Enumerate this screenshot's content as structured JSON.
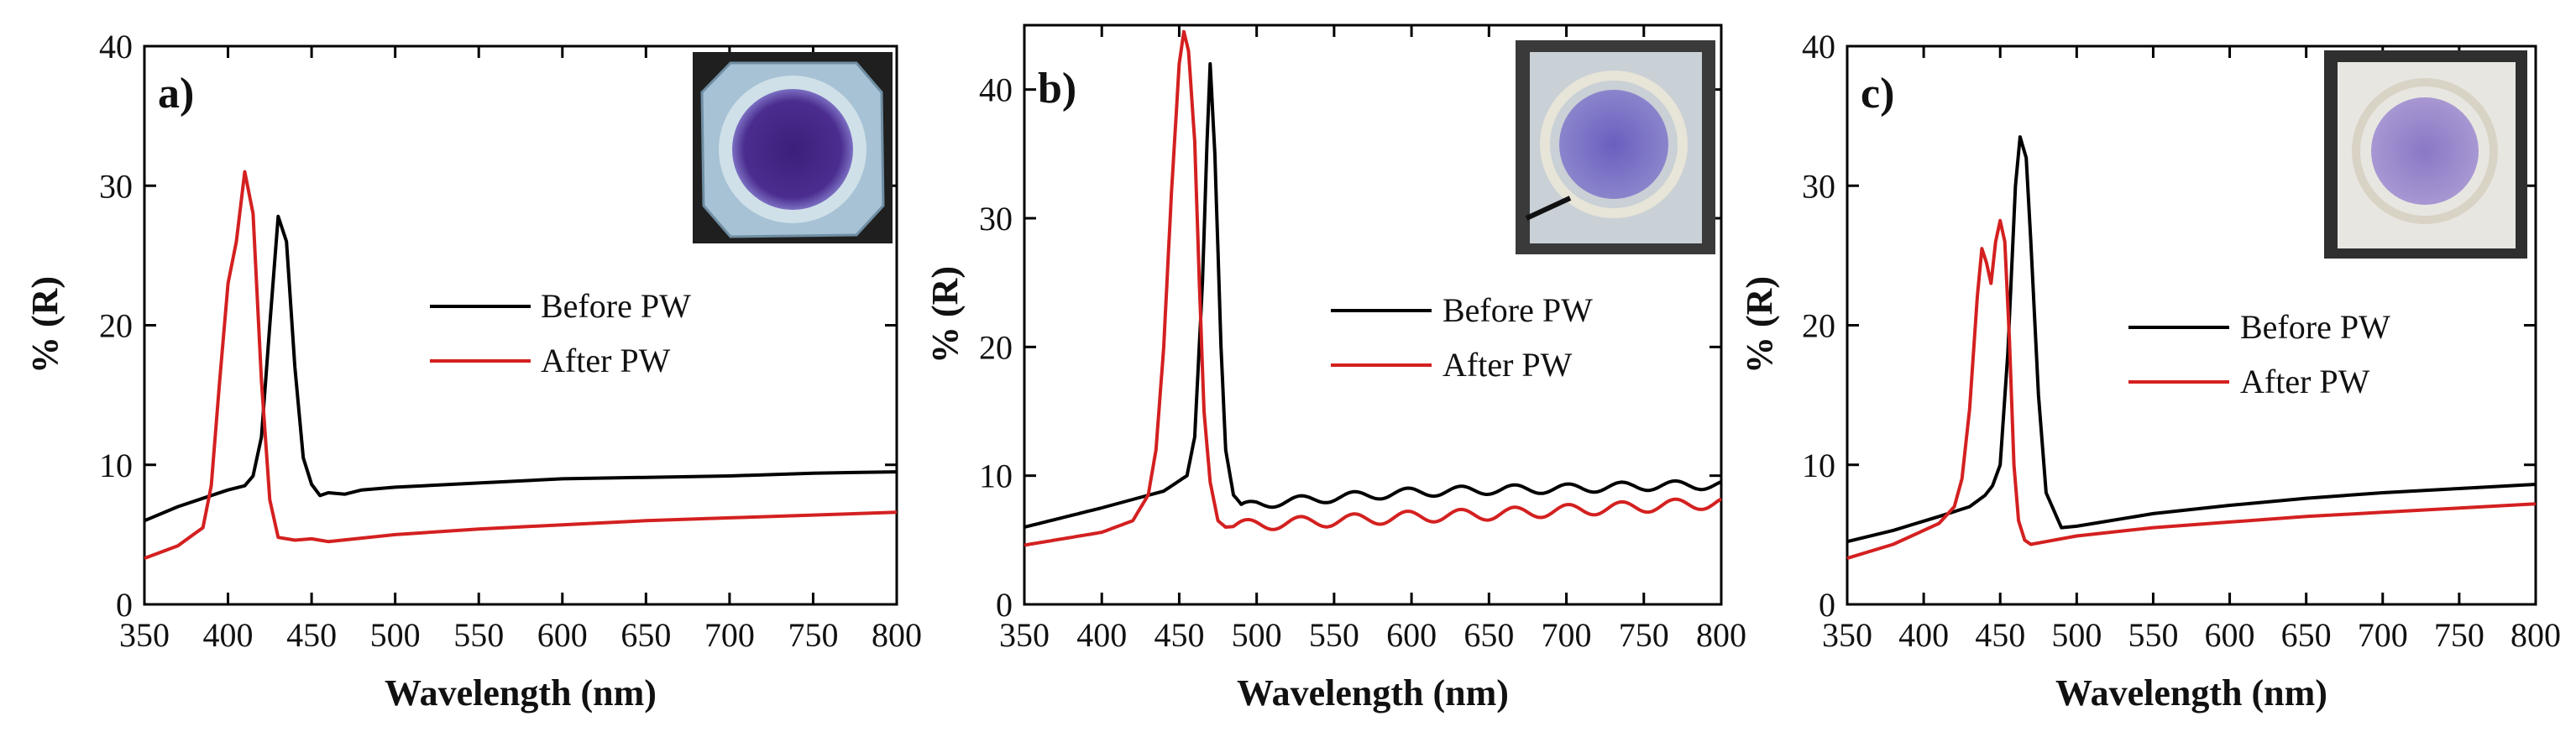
{
  "figure": {
    "description_visible": "three reflectance spectra panels"
  },
  "chart_data": [
    {
      "type": "line",
      "panel_label": "a)",
      "xlabel": "Wavelength (nm)",
      "ylabel": "% (R)",
      "xlim": [
        350,
        800
      ],
      "ylim": [
        0,
        40
      ],
      "xticks": [
        350,
        400,
        450,
        500,
        550,
        600,
        650,
        700,
        750,
        800
      ],
      "yticks": [
        0,
        10,
        20,
        30,
        40
      ],
      "legend": [
        "Before PW",
        "After PW"
      ],
      "series": [
        {
          "name": "Before PW",
          "color": "#000000",
          "x": [
            350,
            370,
            390,
            400,
            410,
            415,
            420,
            425,
            430,
            435,
            440,
            445,
            450,
            455,
            460,
            470,
            480,
            500,
            550,
            600,
            650,
            700,
            750,
            800
          ],
          "y": [
            6.0,
            7.0,
            7.8,
            8.2,
            8.5,
            9.2,
            12,
            20,
            27.8,
            26,
            17,
            10.5,
            8.6,
            7.8,
            8.0,
            7.9,
            8.2,
            8.4,
            8.7,
            9.0,
            9.1,
            9.2,
            9.4,
            9.5
          ]
        },
        {
          "name": "After PW",
          "color": "#d42020",
          "x": [
            350,
            370,
            385,
            390,
            395,
            400,
            405,
            410,
            415,
            420,
            425,
            430,
            440,
            450,
            460,
            500,
            550,
            600,
            650,
            700,
            750,
            800
          ],
          "y": [
            3.3,
            4.2,
            5.5,
            8.5,
            16,
            23,
            26,
            31,
            28,
            16,
            7.5,
            4.8,
            4.6,
            4.7,
            4.5,
            5.0,
            5.4,
            5.7,
            6.0,
            6.2,
            6.4,
            6.6
          ]
        }
      ]
    },
    {
      "type": "line",
      "panel_label": "b)",
      "xlabel": "Wavelength (nm)",
      "ylabel": "% (R)",
      "xlim": [
        350,
        800
      ],
      "ylim": [
        0,
        45
      ],
      "xticks": [
        350,
        400,
        450,
        500,
        550,
        600,
        650,
        700,
        750,
        800
      ],
      "yticks": [
        0,
        10,
        20,
        30,
        40
      ],
      "legend": [
        "Before PW",
        "After PW"
      ],
      "series": [
        {
          "name": "Before PW",
          "color": "#000000",
          "x": [
            350,
            400,
            440,
            455,
            460,
            465,
            468,
            470,
            473,
            477,
            480,
            485,
            490,
            500,
            550,
            600,
            650,
            700,
            750,
            800
          ],
          "y": [
            6.0,
            7.5,
            8.8,
            10,
            13,
            25,
            36,
            42,
            35,
            20,
            12,
            8.5,
            7.5,
            7.8,
            8.3,
            8.7,
            8.9,
            9.0,
            9.2,
            9.3
          ],
          "ripple": 0.35
        },
        {
          "name": "After PW",
          "color": "#d42020",
          "x": [
            350,
            400,
            420,
            430,
            435,
            440,
            445,
            450,
            453,
            456,
            460,
            463,
            466,
            470,
            475,
            480,
            500,
            550,
            600,
            650,
            700,
            750,
            800
          ],
          "y": [
            4.6,
            5.6,
            6.5,
            8.5,
            12,
            20,
            32,
            42,
            44.5,
            43,
            36,
            25,
            15,
            9.5,
            6.5,
            6.0,
            6.2,
            6.5,
            6.8,
            7.0,
            7.3,
            7.6,
            7.9
          ],
          "ripple": 0.45
        }
      ]
    },
    {
      "type": "line",
      "panel_label": "c)",
      "xlabel": "Wavelength (nm)",
      "ylabel": "% (R)",
      "xlim": [
        350,
        800
      ],
      "ylim": [
        0,
        40
      ],
      "xticks": [
        350,
        400,
        450,
        500,
        550,
        600,
        650,
        700,
        750,
        800
      ],
      "yticks": [
        0,
        10,
        20,
        30,
        40
      ],
      "legend": [
        "Before PW",
        "After PW"
      ],
      "series": [
        {
          "name": "Before PW",
          "color": "#000000",
          "x": [
            350,
            380,
            410,
            430,
            440,
            445,
            450,
            455,
            460,
            463,
            467,
            470,
            475,
            480,
            490,
            500,
            550,
            600,
            650,
            700,
            750,
            800
          ],
          "y": [
            4.5,
            5.3,
            6.3,
            7.0,
            7.8,
            8.5,
            10,
            18,
            30,
            33.5,
            32,
            26,
            15,
            8,
            5.5,
            5.6,
            6.5,
            7.1,
            7.6,
            8.0,
            8.3,
            8.6
          ]
        },
        {
          "name": "After PW",
          "color": "#d42020",
          "x": [
            350,
            380,
            410,
            420,
            425,
            430,
            435,
            438,
            441,
            444,
            447,
            450,
            453,
            456,
            459,
            462,
            466,
            470,
            480,
            500,
            550,
            600,
            650,
            700,
            750,
            800
          ],
          "y": [
            3.3,
            4.3,
            5.8,
            7.0,
            9.0,
            14,
            22,
            25.5,
            24.5,
            23,
            26,
            27.5,
            26,
            19,
            10,
            6,
            4.6,
            4.3,
            4.5,
            4.9,
            5.5,
            5.9,
            6.3,
            6.6,
            6.9,
            7.2
          ]
        }
      ]
    }
  ]
}
